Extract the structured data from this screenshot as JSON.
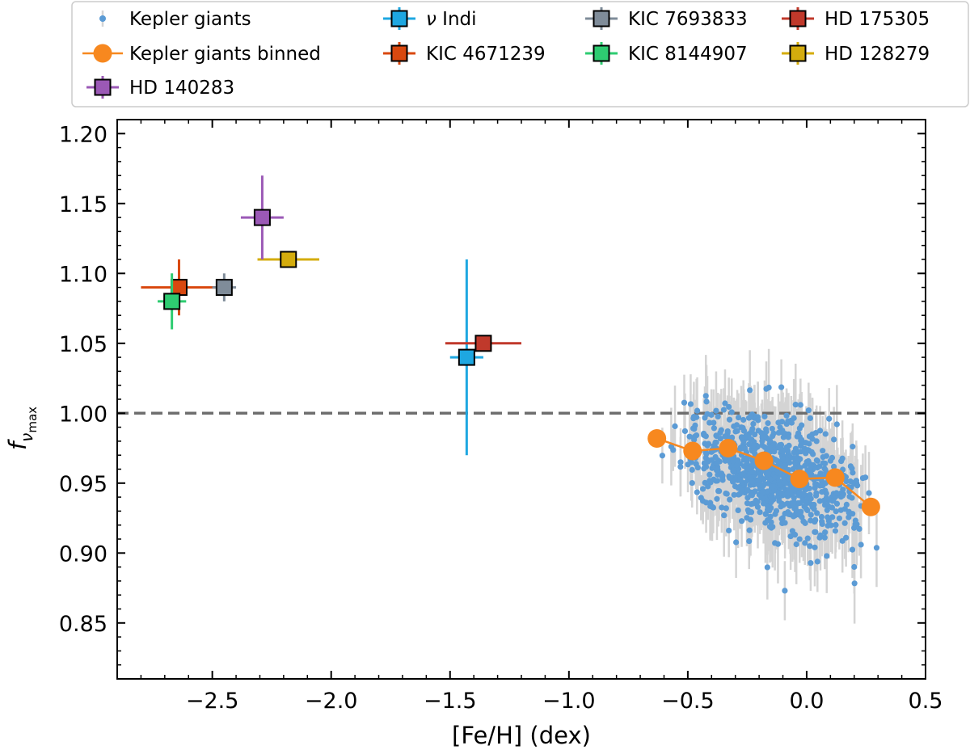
{
  "chart_data": {
    "type": "scatter",
    "xlabel": "[Fe/H] (dex)",
    "ylabel": "f_νmax",
    "ylabel_main": "f",
    "ylabel_sub_symbol": "ν",
    "ylabel_sub_text": "max",
    "xlim": [
      -2.9,
      0.5
    ],
    "ylim": [
      0.81,
      1.21
    ],
    "x_ticks": [
      -2.5,
      -2.0,
      -1.5,
      -1.0,
      -0.5,
      0.0,
      0.5
    ],
    "x_tick_labels": [
      "−2.5",
      "−2.0",
      "−1.5",
      "−1.0",
      "−0.5",
      "0.0",
      "0.5"
    ],
    "y_ticks": [
      0.85,
      0.9,
      0.95,
      1.0,
      1.05,
      1.1,
      1.15,
      1.2
    ],
    "y_tick_labels": [
      "0.85",
      "0.90",
      "0.95",
      "1.00",
      "1.05",
      "1.10",
      "1.15",
      "1.20"
    ],
    "reference_line": {
      "y": 1.0,
      "style": "dashed",
      "color": "#6e6e6e"
    },
    "legend_position": "top",
    "scatter_series": {
      "name": "Kepler giants",
      "color": "#5b9bd5",
      "error_color": "#d4d4d4",
      "count": 900,
      "x_range": [
        -0.72,
        0.42
      ],
      "trend": [
        {
          "x": -0.7,
          "y": 0.985
        },
        {
          "x": 0.4,
          "y": 0.928
        }
      ],
      "scatter_std": 0.02,
      "error_range": [
        0.015,
        0.03
      ]
    },
    "binned_series": {
      "name": "Kepler giants binned",
      "color": "#f7881f",
      "x": [
        -0.63,
        -0.48,
        -0.33,
        -0.18,
        -0.03,
        0.12,
        0.27
      ],
      "y": [
        0.982,
        0.973,
        0.975,
        0.966,
        0.953,
        0.954,
        0.933
      ]
    },
    "stars": [
      {
        "name": "ν Indi",
        "name_symbol": "ν",
        "name_rest": " Indi",
        "x": -1.43,
        "y": 1.04,
        "xerr": 0.07,
        "yerr": 0.07,
        "color": "#1ea7e1"
      },
      {
        "name": "KIC 4671239",
        "x": -2.64,
        "y": 1.09,
        "xerr": 0.16,
        "yerr": 0.02,
        "color": "#d9480f"
      },
      {
        "name": "KIC 7693833",
        "x": -2.45,
        "y": 1.09,
        "xerr": 0.05,
        "yerr": 0.01,
        "color": "#7f8c99"
      },
      {
        "name": "KIC 8144907",
        "x": -2.67,
        "y": 1.08,
        "xerr": 0.06,
        "yerr": 0.02,
        "color": "#2ecc71"
      },
      {
        "name": "HD 175305",
        "x": -1.36,
        "y": 1.05,
        "xerr": 0.16,
        "yerr": 0.0,
        "color": "#c0392b"
      },
      {
        "name": "HD 128279",
        "x": -2.18,
        "y": 1.11,
        "xerr": 0.13,
        "yerr": 0.0,
        "color": "#d4ac0d"
      },
      {
        "name": "HD 140283",
        "x": -2.29,
        "y": 1.14,
        "xerr": 0.09,
        "yerr": 0.03,
        "color": "#9b59b6"
      }
    ],
    "legend": [
      [
        "Kepler giants",
        "ν Indi",
        "KIC 7693833",
        "HD 175305"
      ],
      [
        "Kepler giants binned",
        "KIC 4671239",
        "KIC 8144907",
        "HD 128279"
      ],
      [
        "HD 140283"
      ]
    ]
  }
}
